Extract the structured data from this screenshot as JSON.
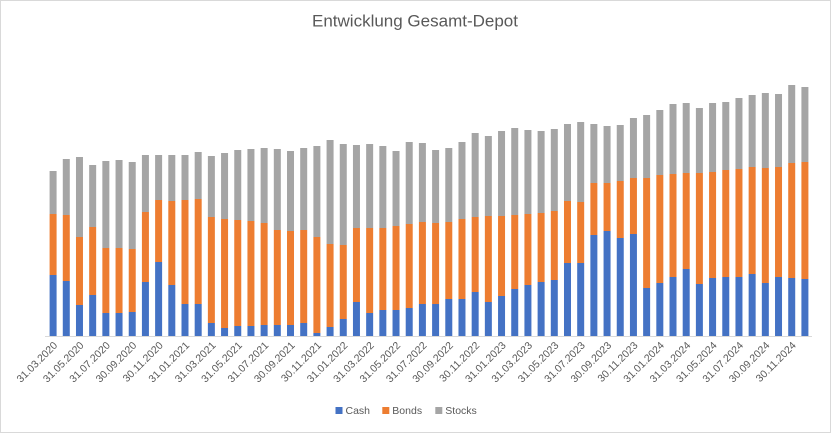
{
  "chart_data": {
    "type": "bar",
    "stacked": true,
    "title": "Entwicklung Gesamt-Depot",
    "categories": [
      "31.03.2020",
      null,
      "31.05.2020",
      null,
      "31.07.2020",
      null,
      "30.09.2020",
      null,
      "30.11.2020",
      null,
      "31.01.2021",
      null,
      "31.03.2021",
      null,
      "31.05.2021",
      null,
      "31.07.2021",
      null,
      "30.09.2021",
      null,
      "30.11.2021",
      null,
      "31.01.2022",
      null,
      "31.03.2022",
      null,
      "31.05.2022",
      null,
      "31.07.2022",
      null,
      "30.09.2022",
      null,
      "30.11.2022",
      null,
      "31.01.2023",
      null,
      "31.03.2023",
      null,
      "31.05.2023",
      null,
      "31.07.2023",
      null,
      "30.09.2023",
      null,
      "30.11.2023",
      null,
      "31.01.2024",
      null,
      "31.03.2024",
      null,
      "31.05.2024",
      null,
      "31.07.2024",
      null,
      "30.09.2024",
      null,
      "30.11.2024",
      null
    ],
    "series": [
      {
        "name": "Cash",
        "color": "#4472c4",
        "values": [
          61,
          55,
          31,
          41,
          23,
          23,
          24,
          54,
          74,
          51,
          32,
          32,
          13,
          8,
          10,
          10,
          11,
          11,
          11,
          13,
          3,
          9,
          17,
          34,
          23,
          26,
          26,
          28,
          32,
          32,
          37,
          37,
          44,
          34,
          40,
          47,
          51,
          54,
          56,
          73,
          73,
          101,
          105,
          98,
          102,
          48,
          53,
          59,
          67,
          52,
          58,
          59,
          59,
          62,
          53,
          59,
          58,
          57
        ]
      },
      {
        "name": "Bonds",
        "color": "#ed7d31",
        "values": [
          61,
          66,
          68,
          68,
          65,
          65,
          63,
          70,
          62,
          84,
          104,
          105,
          106,
          109,
          106,
          105,
          102,
          95,
          94,
          93,
          96,
          83,
          74,
          74,
          85,
          82,
          84,
          84,
          82,
          81,
          77,
          80,
          75,
          86,
          80,
          74,
          71,
          69,
          69,
          62,
          61,
          52,
          48,
          57,
          56,
          110,
          108,
          103,
          96,
          111,
          106,
          107,
          108,
          107,
          115,
          110,
          115,
          117
        ]
      },
      {
        "name": "Stocks",
        "color": "#a5a5a5",
        "values": [
          43,
          56,
          80,
          62,
          87,
          88,
          87,
          57,
          45,
          46,
          45,
          47,
          61,
          66,
          70,
          72,
          75,
          81,
          80,
          82,
          91,
          104,
          101,
          83,
          84,
          82,
          75,
          82,
          79,
          73,
          74,
          77,
          84,
          80,
          85,
          87,
          84,
          82,
          82,
          77,
          80,
          59,
          57,
          56,
          60,
          63,
          65,
          70,
          70,
          65,
          69,
          68,
          71,
          72,
          75,
          73,
          78,
          75
        ]
      }
    ],
    "ylim": [
      0,
      280
    ],
    "legend": "bottom"
  }
}
